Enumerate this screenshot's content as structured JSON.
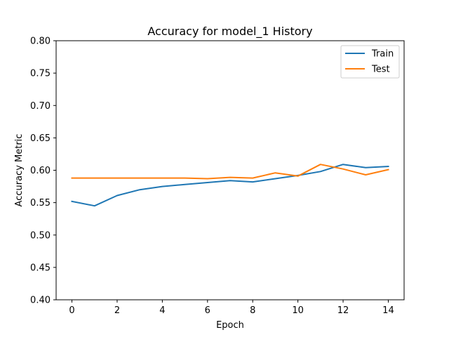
{
  "chart_data": {
    "type": "line",
    "title": "Accuracy for model_1 History",
    "xlabel": "Epoch",
    "ylabel": "Accuracy Metric",
    "xlim": [
      -0.7,
      14.7
    ],
    "ylim": [
      0.4,
      0.8
    ],
    "xticks": [
      "0",
      "2",
      "4",
      "6",
      "8",
      "10",
      "12",
      "14"
    ],
    "yticks": [
      "0.40",
      "0.45",
      "0.50",
      "0.55",
      "0.60",
      "0.65",
      "0.70",
      "0.75",
      "0.80"
    ],
    "x": [
      0,
      1,
      2,
      3,
      4,
      5,
      6,
      7,
      8,
      9,
      10,
      11,
      12,
      13,
      14
    ],
    "series": [
      {
        "name": "Train",
        "color": "#1f77b4",
        "values": [
          0.552,
          0.545,
          0.561,
          0.57,
          0.575,
          0.578,
          0.581,
          0.584,
          0.582,
          0.587,
          0.592,
          0.598,
          0.609,
          0.604,
          0.606
        ]
      },
      {
        "name": "Test",
        "color": "#ff7f0e",
        "values": [
          0.588,
          0.588,
          0.588,
          0.588,
          0.588,
          0.588,
          0.587,
          0.589,
          0.588,
          0.596,
          0.591,
          0.609,
          0.602,
          0.593,
          0.601
        ]
      }
    ],
    "grid": false,
    "legend_position": "top-right"
  }
}
